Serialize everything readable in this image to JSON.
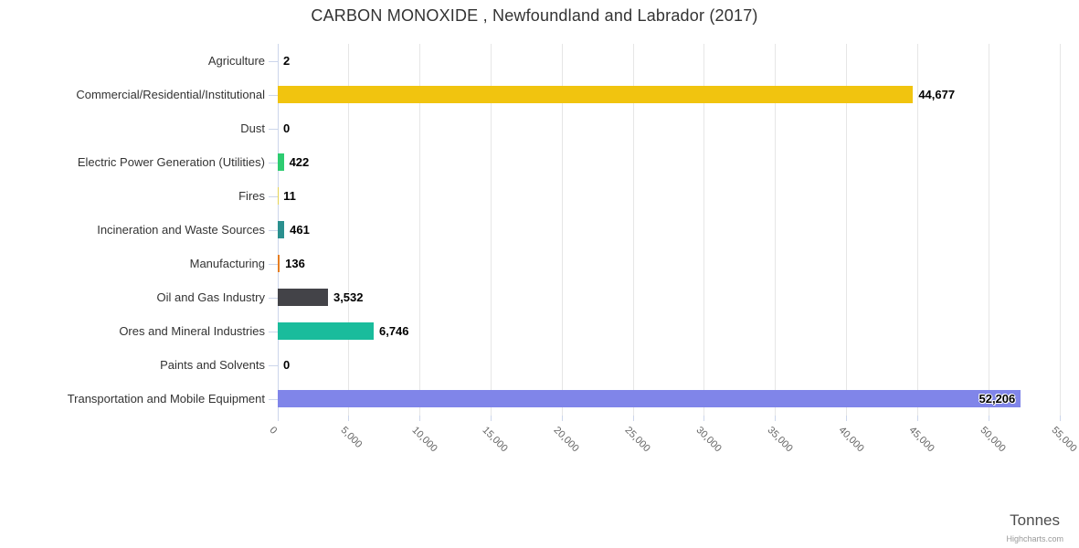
{
  "title": "CARBON MONOXIDE , Newfoundland and Labrador (2017)",
  "credits": "Highcharts.com",
  "chart_data": {
    "type": "bar",
    "orientation": "horizontal",
    "title": "CARBON MONOXIDE , Newfoundland and Labrador (2017)",
    "xlabel": "Tonnes",
    "ylabel": "",
    "legend": false,
    "grid": true,
    "categories": [
      "Agriculture",
      "Commercial/Residential/Institutional",
      "Dust",
      "Electric Power Generation (Utilities)",
      "Fires",
      "Incineration and Waste Sources",
      "Manufacturing",
      "Oil and Gas Industry",
      "Ores and Mineral Industries",
      "Paints and Solvents",
      "Transportation and Mobile Equipment"
    ],
    "values": [
      2,
      44677,
      0,
      422,
      11,
      461,
      136,
      3532,
      6746,
      0,
      52206
    ],
    "data_labels": [
      "2",
      "44,677",
      "0",
      "422",
      "11",
      "461",
      "136",
      "3,532",
      "6,746",
      "0",
      "52,206"
    ],
    "bar_colors": [
      "#7cb5ec",
      "#f1c40f",
      "#f15c80",
      "#2ecc71",
      "#e4d354",
      "#2b908f",
      "#e67e22",
      "#434348",
      "#1abc9c",
      "#f45b5b",
      "#8085e9"
    ],
    "axis": {
      "min": 0,
      "max": 55000,
      "step": 5000,
      "tick_labels": [
        "0",
        "5,000",
        "10,000",
        "15,000",
        "20,000",
        "25,000",
        "30,000",
        "35,000",
        "40,000",
        "45,000",
        "50,000",
        "55,000"
      ]
    }
  },
  "colors": {
    "grid": "#e6e6e6",
    "axis_line": "#ccd6eb",
    "title_text": "#333333",
    "category_label": "#333333",
    "tick_label": "#666666",
    "data_label": "#000000",
    "axis_title": "#4d4d4d",
    "credits": "#999999"
  }
}
